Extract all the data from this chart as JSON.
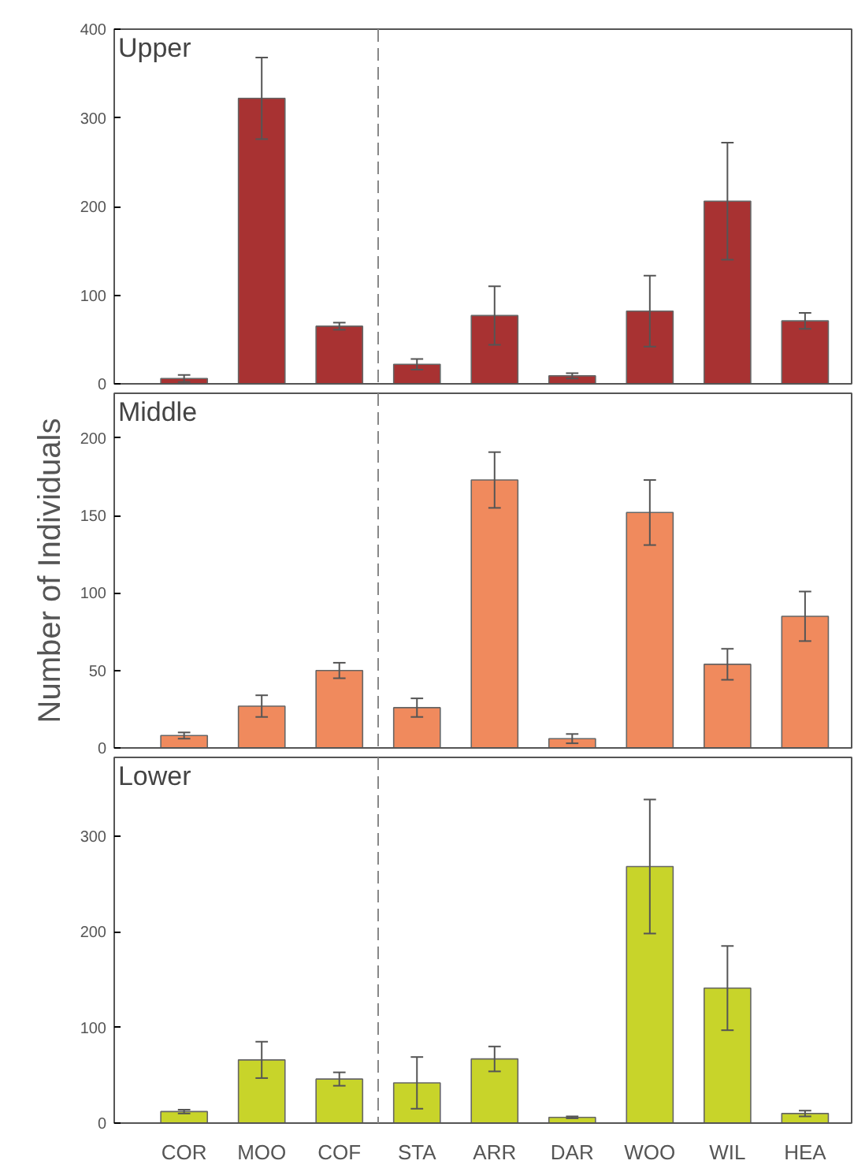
{
  "chart_data": [
    {
      "type": "bar",
      "title": "Upper",
      "categories": [
        null,
        null,
        null,
        null,
        null,
        null,
        null,
        null,
        null
      ],
      "tick_labels": "y",
      "ylim": [
        0,
        400
      ],
      "yticks": [
        0,
        100,
        200,
        300,
        400
      ],
      "grid": false,
      "color": "#a83232",
      "values": [
        6,
        322,
        65,
        22,
        77,
        9,
        82,
        206,
        71
      ],
      "errors": [
        4,
        46,
        4,
        6,
        33,
        3,
        40,
        66,
        9
      ]
    },
    {
      "type": "bar",
      "title": "Middle",
      "ylabel": "Number of Individuals",
      "categories": [
        null,
        null,
        null,
        null,
        null,
        null,
        null,
        null,
        null
      ],
      "tick_labels": "y",
      "ylim": [
        0,
        229
      ],
      "yticks": [
        0,
        50,
        100,
        150,
        200
      ],
      "grid": false,
      "color": "#f08a5d",
      "values": [
        8,
        27,
        50,
        26,
        173,
        6,
        152,
        54,
        85
      ],
      "errors": [
        2,
        7,
        5,
        6,
        18,
        3,
        21,
        10,
        16
      ]
    },
    {
      "type": "bar",
      "title": "Lower",
      "categories": [
        "COR",
        "MOO",
        "COF",
        "STA",
        "ARR",
        "DAR",
        "WOO",
        "WIL",
        "HEA"
      ],
      "ylim": [
        0,
        382
      ],
      "yticks": [
        0,
        100,
        200,
        300
      ],
      "grid": false,
      "color": "#c8d42a",
      "values": [
        12,
        66,
        46,
        42,
        67,
        6,
        268,
        141,
        10
      ],
      "errors": [
        2,
        19,
        7,
        27,
        13,
        1,
        70,
        44,
        3
      ]
    }
  ]
}
